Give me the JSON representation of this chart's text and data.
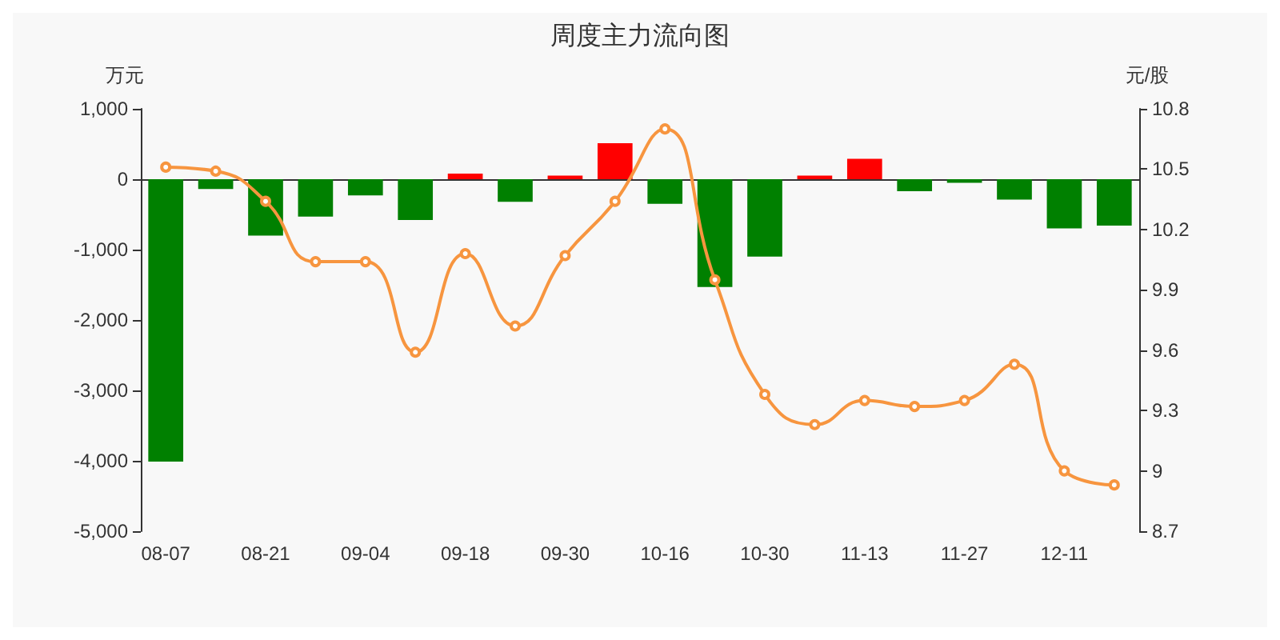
{
  "chart_data": {
    "type": "bar",
    "title": "周度主力流向图",
    "ylabel": "万元",
    "y2label": "元/股",
    "categories": [
      "08-07",
      null,
      "08-21",
      null,
      "09-04",
      null,
      "09-18",
      null,
      "09-30",
      null,
      "10-16",
      null,
      "10-30",
      null,
      "11-13",
      null,
      "11-27",
      null,
      "12-11",
      null
    ],
    "series": [
      {
        "values": [
          -4010,
          -140,
          -800,
          -530,
          -230,
          -580,
          80,
          -320,
          50,
          510,
          -350,
          -1530,
          -1100,
          50,
          290,
          -170,
          -50,
          -290,
          -700,
          -660
        ],
        "colors": [
          "#008000",
          "#008000",
          "#008000",
          "#008000",
          "#008000",
          "#008000",
          "#ff0000",
          "#008000",
          "#ff0000",
          "#ff0000",
          "#008000",
          "#008000",
          "#008000",
          "#ff0000",
          "#ff0000",
          "#008000",
          "#008000",
          "#008000",
          "#008000",
          "#008000"
        ]
      },
      {
        "type": "line",
        "axis": "y2",
        "color": "#f7953f",
        "marker": "circle",
        "values": [
          10.51,
          10.49,
          10.34,
          10.04,
          10.04,
          9.59,
          10.08,
          9.72,
          10.07,
          10.34,
          10.7,
          9.95,
          9.38,
          9.23,
          9.35,
          9.32,
          9.35,
          9.53,
          9.0,
          8.93
        ]
      }
    ],
    "ylim": [
      -5000,
      1000
    ],
    "yticks": [
      {
        "value": -5000,
        "label": "-5,000"
      },
      {
        "value": -4000,
        "label": "-4,000"
      },
      {
        "value": -3000,
        "label": "-3,000"
      },
      {
        "value": -2000,
        "label": "-2,000"
      },
      {
        "value": -1000,
        "label": "-1,000"
      },
      0,
      {
        "value": 1000,
        "label": "1,000"
      }
    ],
    "y2lim": [
      8.7,
      10.8
    ],
    "y2ticks": [
      8.7,
      9,
      9.3,
      9.6,
      9.9,
      10.2,
      10.5,
      10.8
    ]
  }
}
